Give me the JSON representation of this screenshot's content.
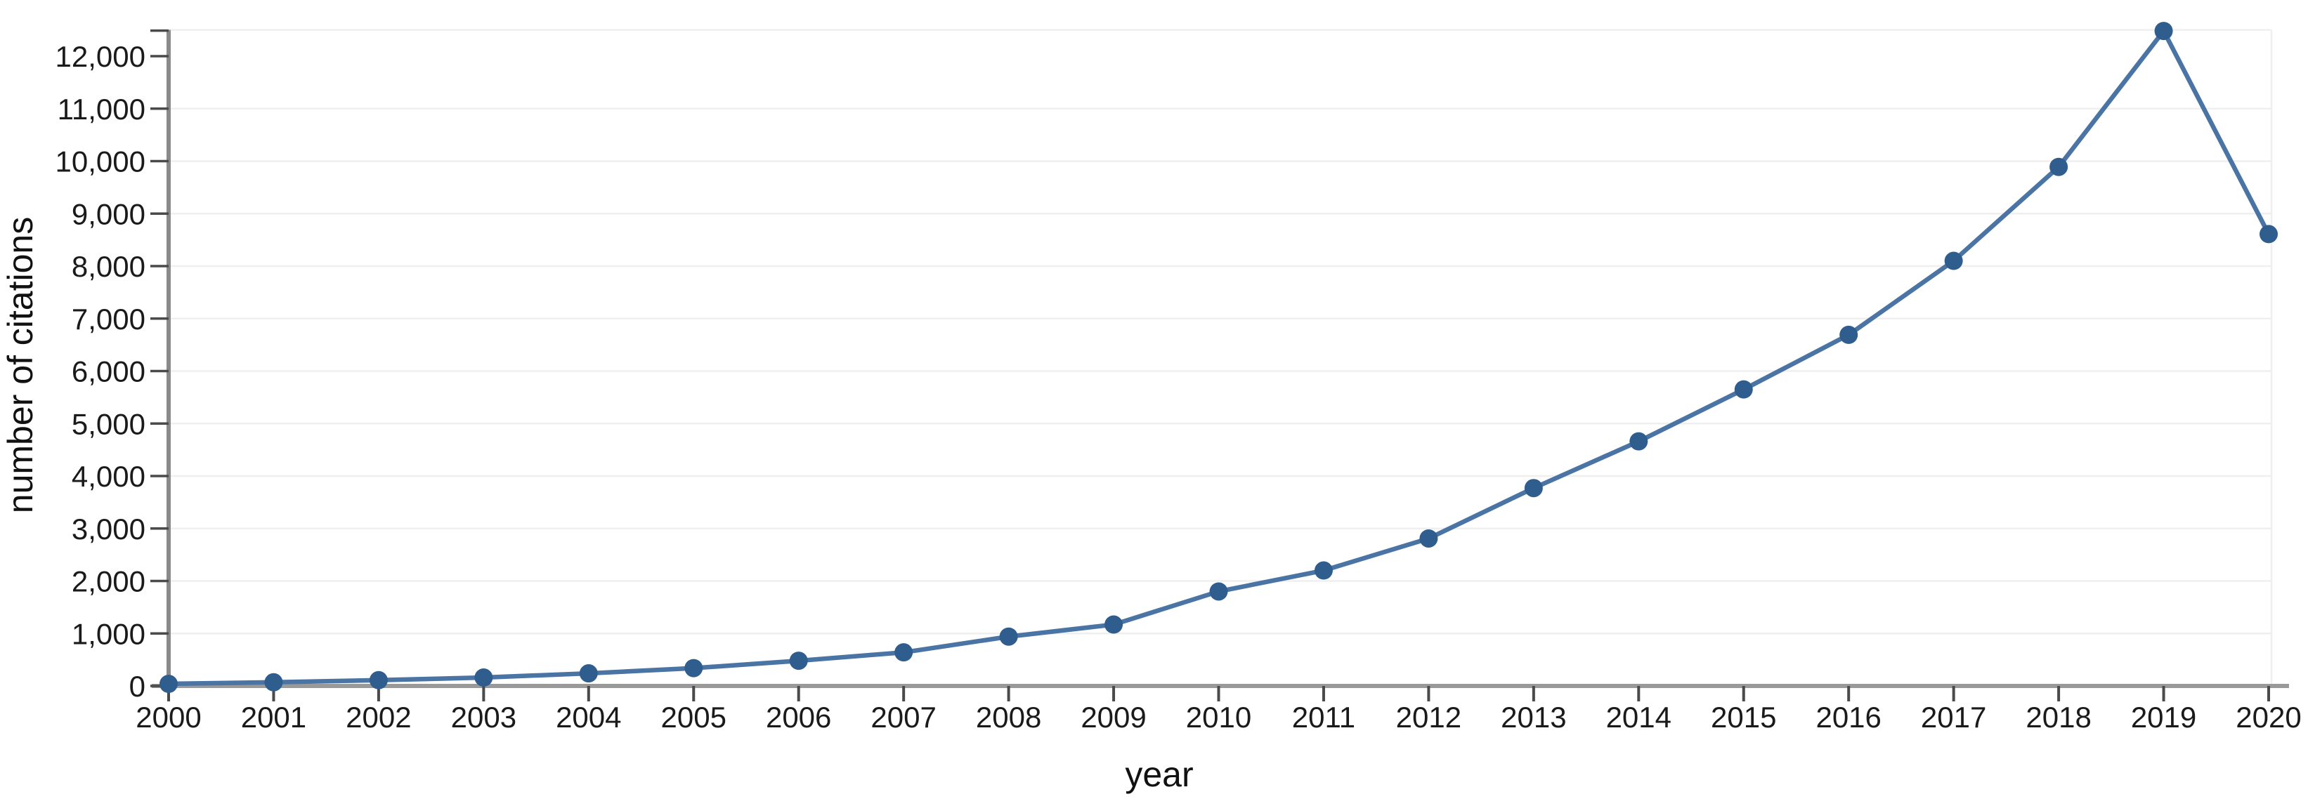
{
  "chart_data": {
    "type": "line",
    "title": "",
    "xlabel": "year",
    "ylabel": "number of citations",
    "x": [
      2000,
      2001,
      2002,
      2003,
      2004,
      2005,
      2006,
      2007,
      2008,
      2009,
      2010,
      2011,
      2012,
      2013,
      2014,
      2015,
      2016,
      2017,
      2018,
      2019,
      2020
    ],
    "series": [
      {
        "name": "number of citations",
        "values": [
          40,
          70,
          110,
          160,
          240,
          340,
          480,
          640,
          940,
          1170,
          1800,
          2200,
          2810,
          3770,
          4660,
          5650,
          6690,
          8100,
          9890,
          12480,
          8610
        ]
      }
    ],
    "xlim": [
      2000,
      2020
    ],
    "ylim": [
      0,
      12500
    ],
    "ytick_step": 1000,
    "ytick_labels": [
      "0",
      "1,000",
      "2,000",
      "3,000",
      "4,000",
      "5,000",
      "6,000",
      "7,000",
      "8,000",
      "9,000",
      "10,000",
      "11,000",
      "12,000"
    ],
    "grid": "horizontal",
    "legend_position": "none",
    "colors": {
      "line": "#4a74a4",
      "marker": "#2f5d8d",
      "x_axis": "#9a9a9a",
      "y_axis": "#8a8a8a",
      "tick": "#4a4a4a",
      "grid": "#efefef",
      "tick_label": "#1a1a1a",
      "axis_label": "#111111"
    }
  }
}
